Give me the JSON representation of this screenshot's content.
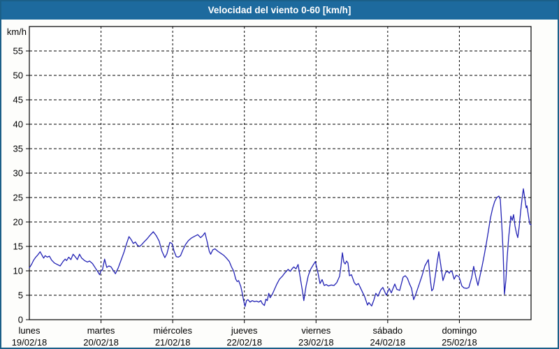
{
  "window": {
    "title": "Velocidad del viento 0-60 [km/h]"
  },
  "colors": {
    "titlebar_bg": "#1d6a9e",
    "titlebar_text": "#ffffff",
    "frame_border": "#1b5f88",
    "background": "#fdfdfb",
    "plot_bg": "#ffffff",
    "axis": "#000000",
    "grid": "#000000",
    "line": "#2222b4",
    "label_text": "#000000"
  },
  "chart_data": {
    "type": "line",
    "title": "Velocidad del viento 0-60 [km/h]",
    "ylabel": "km/h",
    "ylim": [
      0,
      60
    ],
    "yticks": [
      0,
      5,
      10,
      15,
      20,
      25,
      30,
      35,
      40,
      45,
      50,
      55
    ],
    "grid": "dashed",
    "legend_position": "none",
    "x_unit": "days",
    "xlim_days": [
      0,
      7
    ],
    "days": [
      {
        "name": "lunes",
        "date": "19/02/18"
      },
      {
        "name": "martes",
        "date": "20/02/18"
      },
      {
        "name": "miércoles",
        "date": "21/02/18"
      },
      {
        "name": "jueves",
        "date": "22/02/18"
      },
      {
        "name": "viernes",
        "date": "23/02/18"
      },
      {
        "name": "sábado",
        "date": "24/02/18"
      },
      {
        "name": "domingo",
        "date": "25/02/18"
      }
    ],
    "series": [
      {
        "name": "Velocidad del viento",
        "unit": "km/h",
        "points": [
          [
            0,
            10.6
          ],
          [
            0.03,
            11.3
          ],
          [
            0.06,
            12.2
          ],
          [
            0.09,
            12.8
          ],
          [
            0.12,
            13.3
          ],
          [
            0.15,
            13.9
          ],
          [
            0.18,
            13.1
          ],
          [
            0.2,
            12.6
          ],
          [
            0.22,
            13.1
          ],
          [
            0.25,
            12.8
          ],
          [
            0.28,
            13
          ],
          [
            0.31,
            12.2
          ],
          [
            0.35,
            11.6
          ],
          [
            0.39,
            11.3
          ],
          [
            0.43,
            11
          ],
          [
            0.47,
            11.9
          ],
          [
            0.5,
            12.4
          ],
          [
            0.52,
            12.1
          ],
          [
            0.55,
            12.8
          ],
          [
            0.58,
            12.3
          ],
          [
            0.61,
            13.4
          ],
          [
            0.64,
            12.9
          ],
          [
            0.67,
            12.3
          ],
          [
            0.7,
            13.4
          ],
          [
            0.73,
            12.6
          ],
          [
            0.77,
            12.1
          ],
          [
            0.81,
            11.8
          ],
          [
            0.84,
            12
          ],
          [
            0.88,
            11.5
          ],
          [
            0.92,
            10.6
          ],
          [
            0.96,
            9.7
          ],
          [
            0.98,
            9.2
          ],
          [
            1,
            10
          ],
          [
            1.02,
            10.2
          ],
          [
            1.05,
            12.4
          ],
          [
            1.08,
            10.7
          ],
          [
            1.11,
            11
          ],
          [
            1.14,
            10.8
          ],
          [
            1.17,
            10.1
          ],
          [
            1.2,
            9.4
          ],
          [
            1.24,
            10.6
          ],
          [
            1.28,
            12.2
          ],
          [
            1.32,
            13.8
          ],
          [
            1.36,
            15.7
          ],
          [
            1.39,
            17
          ],
          [
            1.42,
            16.4
          ],
          [
            1.45,
            15.6
          ],
          [
            1.48,
            15.9
          ],
          [
            1.51,
            15.2
          ],
          [
            1.54,
            15
          ],
          [
            1.57,
            15.4
          ],
          [
            1.6,
            15.9
          ],
          [
            1.64,
            16.5
          ],
          [
            1.68,
            17.2
          ],
          [
            1.73,
            18
          ],
          [
            1.77,
            17.2
          ],
          [
            1.81,
            16.1
          ],
          [
            1.85,
            14
          ],
          [
            1.89,
            12.7
          ],
          [
            1.92,
            13.5
          ],
          [
            1.96,
            15.8
          ],
          [
            1.99,
            15.6
          ],
          [
            2.02,
            14
          ],
          [
            2.05,
            12.9
          ],
          [
            2.08,
            12.8
          ],
          [
            2.11,
            13.1
          ],
          [
            2.14,
            14.2
          ],
          [
            2.18,
            15.4
          ],
          [
            2.22,
            16.2
          ],
          [
            2.26,
            16.7
          ],
          [
            2.31,
            17.1
          ],
          [
            2.35,
            17.4
          ],
          [
            2.39,
            16.8
          ],
          [
            2.42,
            17.2
          ],
          [
            2.45,
            17.8
          ],
          [
            2.48,
            16
          ],
          [
            2.51,
            14
          ],
          [
            2.53,
            13.4
          ],
          [
            2.56,
            14.3
          ],
          [
            2.59,
            14.5
          ],
          [
            2.63,
            14
          ],
          [
            2.67,
            13.6
          ],
          [
            2.71,
            13.2
          ],
          [
            2.75,
            12.6
          ],
          [
            2.79,
            11.9
          ],
          [
            2.82,
            10.8
          ],
          [
            2.85,
            10
          ],
          [
            2.88,
            8.3
          ],
          [
            2.9,
            7.8
          ],
          [
            2.92,
            8
          ],
          [
            2.95,
            6.8
          ],
          [
            2.97,
            5.5
          ],
          [
            2.99,
            3.9
          ],
          [
            3.01,
            2.7
          ],
          [
            3.03,
            3.9
          ],
          [
            3.05,
            4.1
          ],
          [
            3.08,
            3.6
          ],
          [
            3.11,
            3.9
          ],
          [
            3.14,
            3.7
          ],
          [
            3.17,
            3.8
          ],
          [
            3.2,
            3.6
          ],
          [
            3.23,
            3.9
          ],
          [
            3.25,
            3.3
          ],
          [
            3.28,
            2.9
          ],
          [
            3.3,
            4.2
          ],
          [
            3.32,
            3.9
          ],
          [
            3.34,
            5.4
          ],
          [
            3.36,
            4.5
          ],
          [
            3.39,
            5.2
          ],
          [
            3.42,
            6.2
          ],
          [
            3.45,
            7.2
          ],
          [
            3.49,
            8.3
          ],
          [
            3.53,
            8.9
          ],
          [
            3.56,
            9.5
          ],
          [
            3.58,
            9.8
          ],
          [
            3.61,
            10.3
          ],
          [
            3.64,
            9.9
          ],
          [
            3.67,
            10.5
          ],
          [
            3.69,
            10.8
          ],
          [
            3.72,
            10.4
          ],
          [
            3.75,
            11.3
          ],
          [
            3.78,
            8.6
          ],
          [
            3.81,
            5.9
          ],
          [
            3.83,
            3.9
          ],
          [
            3.86,
            6.8
          ],
          [
            3.89,
            8.9
          ],
          [
            3.92,
            10.2
          ],
          [
            3.96,
            11.2
          ],
          [
            3.99,
            11.9
          ],
          [
            4.026,
            9.6
          ],
          [
            4.056,
            7.4
          ],
          [
            4.085,
            8.2
          ],
          [
            4.114,
            7
          ],
          [
            4.143,
            7.2
          ],
          [
            4.173,
            6.9
          ],
          [
            4.212,
            7.1
          ],
          [
            4.251,
            7
          ],
          [
            4.29,
            7.6
          ],
          [
            4.329,
            8.9
          ],
          [
            4.348,
            11
          ],
          [
            4.368,
            13.7
          ],
          [
            4.387,
            11.8
          ],
          [
            4.407,
            11.4
          ],
          [
            4.426,
            12
          ],
          [
            4.446,
            11.6
          ],
          [
            4.466,
            9
          ],
          [
            4.494,
            9.2
          ],
          [
            4.533,
            7.6
          ],
          [
            4.562,
            7.1
          ],
          [
            4.591,
            7.4
          ],
          [
            4.64,
            5.9
          ],
          [
            4.679,
            4.7
          ],
          [
            4.718,
            3
          ],
          [
            4.737,
            3.5
          ],
          [
            4.776,
            2.8
          ],
          [
            4.806,
            4
          ],
          [
            4.835,
            5.4
          ],
          [
            4.864,
            4.8
          ],
          [
            4.903,
            6.1
          ],
          [
            4.932,
            6.6
          ],
          [
            4.981,
            5
          ],
          [
            5.021,
            6.4
          ],
          [
            5.05,
            5.5
          ],
          [
            5.099,
            7.3
          ],
          [
            5.128,
            6.2
          ],
          [
            5.167,
            6
          ],
          [
            5.215,
            8.7
          ],
          [
            5.245,
            9
          ],
          [
            5.274,
            8.5
          ],
          [
            5.303,
            7.4
          ],
          [
            5.333,
            6.4
          ],
          [
            5.362,
            4.1
          ],
          [
            5.391,
            5.2
          ],
          [
            5.44,
            7.3
          ],
          [
            5.479,
            9
          ],
          [
            5.518,
            11
          ],
          [
            5.567,
            12.3
          ],
          [
            5.596,
            8
          ],
          [
            5.615,
            5.9
          ],
          [
            5.635,
            6.3
          ],
          [
            5.664,
            9
          ],
          [
            5.693,
            12
          ],
          [
            5.713,
            13.9
          ],
          [
            5.742,
            11
          ],
          [
            5.771,
            8
          ],
          [
            5.81,
            9.7
          ],
          [
            5.839,
            9.9
          ],
          [
            5.859,
            9.5
          ],
          [
            5.878,
            10
          ],
          [
            5.898,
            9.8
          ],
          [
            5.927,
            8.3
          ],
          [
            5.956,
            9.1
          ],
          [
            5.995,
            8.8
          ],
          [
            6.035,
            6.9
          ],
          [
            6.064,
            6.5
          ],
          [
            6.103,
            6.4
          ],
          [
            6.132,
            6.6
          ],
          [
            6.171,
            8.6
          ],
          [
            6.2,
            10.9
          ],
          [
            6.23,
            8.7
          ],
          [
            6.259,
            7
          ],
          [
            6.288,
            9
          ],
          [
            6.318,
            11
          ],
          [
            6.347,
            13.2
          ],
          [
            6.376,
            15.6
          ],
          [
            6.405,
            18.2
          ],
          [
            6.434,
            20.8
          ],
          [
            6.464,
            22.8
          ],
          [
            6.493,
            24.2
          ],
          [
            6.522,
            25
          ],
          [
            6.551,
            25.3
          ],
          [
            6.571,
            24.6
          ],
          [
            6.59,
            20
          ],
          [
            6.61,
            14
          ],
          [
            6.629,
            5.2
          ],
          [
            6.649,
            8.1
          ],
          [
            6.668,
            12.9
          ],
          [
            6.688,
            16.9
          ],
          [
            6.707,
            19.5
          ],
          [
            6.717,
            21.2
          ],
          [
            6.737,
            20.3
          ],
          [
            6.756,
            21.5
          ],
          [
            6.776,
            19.2
          ],
          [
            6.795,
            17.8
          ],
          [
            6.815,
            16.8
          ],
          [
            6.834,
            19
          ],
          [
            6.854,
            22
          ],
          [
            6.873,
            24.6
          ],
          [
            6.893,
            26.8
          ],
          [
            6.912,
            24.9
          ],
          [
            6.932,
            22.9
          ],
          [
            6.942,
            23.3
          ],
          [
            6.961,
            21.5
          ],
          [
            6.981,
            19.6
          ],
          [
            7,
            19.4
          ]
        ]
      }
    ]
  }
}
